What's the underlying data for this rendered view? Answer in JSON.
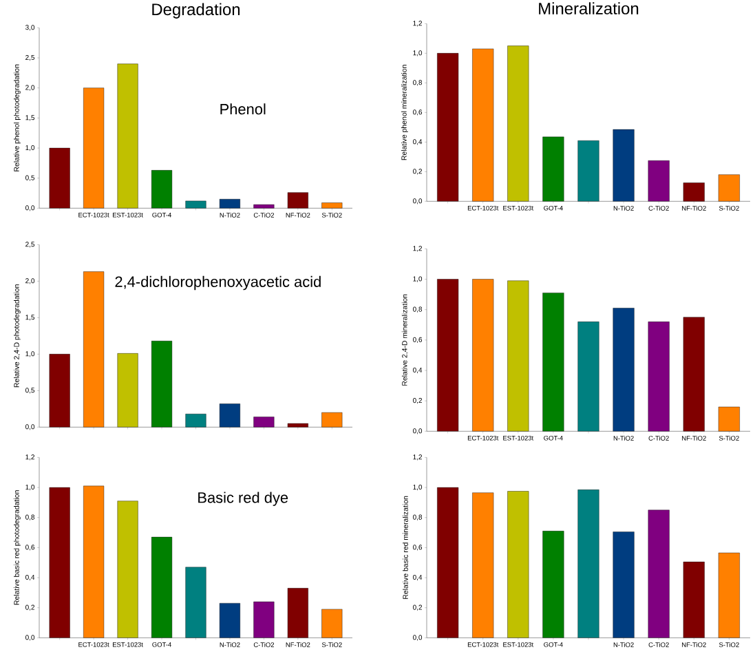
{
  "chart_data": [
    {
      "type": "bar",
      "title": "Degradation",
      "ylabel": "Relative phenol photodegradation",
      "annotations": [
        "Phenol"
      ],
      "categories": [
        null,
        "ECT-1023t",
        "EST-1023t",
        "GOT-4",
        null,
        "N-TiO2",
        "C-TiO2",
        "NF-TiO2",
        "S-TiO2"
      ],
      "values": [
        1.0,
        2.0,
        2.4,
        0.63,
        0.12,
        0.15,
        0.06,
        0.26,
        0.09
      ],
      "colors": [
        "#800000",
        "#ff8000",
        "#c0c000",
        "#008000",
        "#008080",
        "#003d80",
        "#800080",
        "#800000",
        "#ff8000"
      ],
      "ylim": [
        0,
        3
      ],
      "yticks": [
        {
          "value": 0,
          "label": "0,0"
        },
        {
          "value": 0.5,
          "label": "0,5"
        },
        {
          "value": 1,
          "label": "1,0"
        },
        {
          "value": 1.5,
          "label": "1,5"
        },
        {
          "value": 2,
          "label": "2,0"
        },
        {
          "value": 2.5,
          "label": "2,5"
        },
        {
          "value": 3,
          "label": "3,0"
        }
      ]
    },
    {
      "type": "bar",
      "title": "Mineralization",
      "ylabel": "Relative phenol mineralization",
      "categories": [
        null,
        "ECT-1023t",
        "EST-1023t",
        "GOT-4",
        null,
        "N-TiO2",
        "C-TiO2",
        "NF-TiO2",
        "S-TiO2"
      ],
      "values": [
        1.0,
        1.03,
        1.05,
        0.435,
        0.41,
        0.485,
        0.275,
        0.125,
        0.18
      ],
      "colors": [
        "#800000",
        "#ff8000",
        "#c0c000",
        "#008000",
        "#008080",
        "#003d80",
        "#800080",
        "#800000",
        "#ff8000"
      ],
      "ylim": [
        0,
        1.2
      ],
      "yticks": [
        {
          "value": 0,
          "label": "0,0"
        },
        {
          "value": 0.2,
          "label": "0,2"
        },
        {
          "value": 0.4,
          "label": "0,4"
        },
        {
          "value": 0.6,
          "label": "0,6"
        },
        {
          "value": 0.8,
          "label": "0,8"
        },
        {
          "value": 1,
          "label": "1,0"
        },
        {
          "value": 1.2,
          "label": "1,2"
        }
      ]
    },
    {
      "type": "bar",
      "ylabel": "Relative 2,4-D photodegradation",
      "annotations": [
        "2,4-dichlorophenoxyacetic acid"
      ],
      "tick_labels": "y",
      "categories": [
        null,
        null,
        null,
        null,
        null,
        null,
        null,
        null,
        null
      ],
      "values": [
        1.0,
        2.13,
        1.01,
        1.18,
        0.18,
        0.32,
        0.14,
        0.05,
        0.2
      ],
      "colors": [
        "#800000",
        "#ff8000",
        "#c0c000",
        "#008000",
        "#008080",
        "#003d80",
        "#800080",
        "#800000",
        "#ff8000"
      ],
      "ylim": [
        0,
        2.5
      ],
      "yticks": [
        {
          "value": 0,
          "label": "0,0"
        },
        {
          "value": 0.5,
          "label": "0,5"
        },
        {
          "value": 1,
          "label": "1,0"
        },
        {
          "value": 1.5,
          "label": "1,5"
        },
        {
          "value": 2,
          "label": "2,0"
        },
        {
          "value": 2.5,
          "label": "2,5"
        }
      ]
    },
    {
      "type": "bar",
      "ylabel": "Relative 2,4-D mineralization",
      "categories": [
        null,
        "ECT-1023t",
        "EST-1023t",
        "GOT-4",
        null,
        "N-TiO2",
        "C-TiO2",
        "NF-TiO2",
        "S-TiO2"
      ],
      "values": [
        1.0,
        1.0,
        0.99,
        0.91,
        0.72,
        0.81,
        0.72,
        0.75,
        0.16
      ],
      "colors": [
        "#800000",
        "#ff8000",
        "#c0c000",
        "#008000",
        "#008080",
        "#003d80",
        "#800080",
        "#800000",
        "#ff8000"
      ],
      "ylim": [
        0,
        1.2
      ],
      "yticks": [
        {
          "value": 0,
          "label": "0,0"
        },
        {
          "value": 0.2,
          "label": "0,2"
        },
        {
          "value": 0.4,
          "label": "0,4"
        },
        {
          "value": 0.6,
          "label": "0,6"
        },
        {
          "value": 0.8,
          "label": "0,8"
        },
        {
          "value": 1,
          "label": "1,0"
        },
        {
          "value": 1.2,
          "label": "1,2"
        }
      ]
    },
    {
      "type": "bar",
      "ylabel": "Relative basic red photodegradation",
      "annotations": [
        "Basic red dye"
      ],
      "categories": [
        null,
        "ECT-1023t",
        "EST-1023t",
        "GOT-4",
        null,
        "N-TiO2",
        "C-TiO2",
        "NF-TiO2",
        "S-TiO2"
      ],
      "values": [
        1.0,
        1.01,
        0.91,
        0.67,
        0.47,
        0.23,
        0.24,
        0.33,
        0.19
      ],
      "colors": [
        "#800000",
        "#ff8000",
        "#c0c000",
        "#008000",
        "#008080",
        "#003d80",
        "#800080",
        "#800000",
        "#ff8000"
      ],
      "ylim": [
        0,
        1.2
      ],
      "yticks": [
        {
          "value": 0,
          "label": "0,0"
        },
        {
          "value": 0.2,
          "label": "0,2"
        },
        {
          "value": 0.4,
          "label": "0,4"
        },
        {
          "value": 0.6,
          "label": "0,6"
        },
        {
          "value": 0.8,
          "label": "0,8"
        },
        {
          "value": 1,
          "label": "1,0"
        },
        {
          "value": 1.2,
          "label": "1,2"
        }
      ]
    },
    {
      "type": "bar",
      "ylabel": "Relative basic red mineralization",
      "categories": [
        null,
        "ECT-1023t",
        "EST-1023t",
        "GOT-4",
        null,
        "N-TiO2",
        "C-TiO2",
        "NF-TiO2",
        "S-TiO2"
      ],
      "values": [
        1.0,
        0.965,
        0.975,
        0.71,
        0.985,
        0.705,
        0.85,
        0.505,
        0.565
      ],
      "colors": [
        "#800000",
        "#ff8000",
        "#c0c000",
        "#008000",
        "#008080",
        "#003d80",
        "#800080",
        "#800000",
        "#ff8000"
      ],
      "ylim": [
        0,
        1.2
      ],
      "yticks": [
        {
          "value": 0,
          "label": "0,0"
        },
        {
          "value": 0.2,
          "label": "0,2"
        },
        {
          "value": 0.4,
          "label": "0,4"
        },
        {
          "value": 0.6,
          "label": "0,6"
        },
        {
          "value": 0.8,
          "label": "0,8"
        },
        {
          "value": 1,
          "label": "1,0"
        },
        {
          "value": 1.2,
          "label": "1,2"
        }
      ]
    }
  ]
}
